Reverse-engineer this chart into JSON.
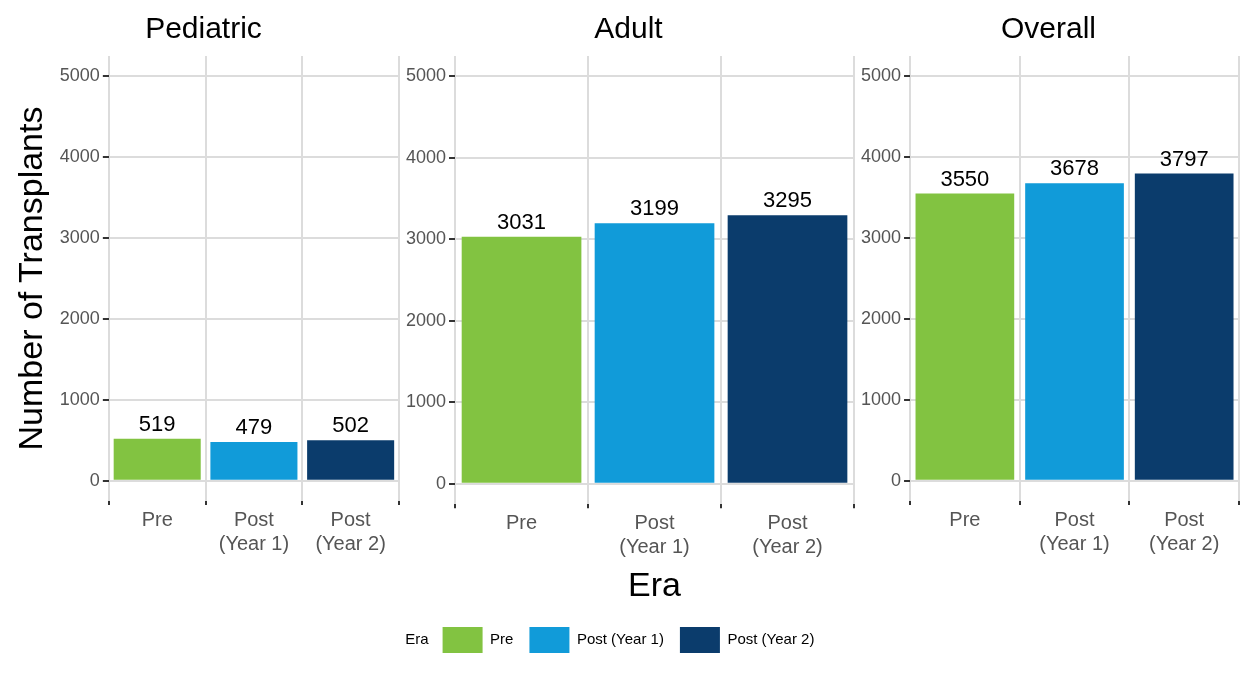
{
  "chart_data": [
    {
      "type": "bar",
      "title": "Pediatric",
      "ylabel": "Number of Transplants",
      "categories": [
        "Pre",
        "Post\n(Year 1)",
        "Post\n(Year 2)"
      ],
      "series": [
        {
          "color": "#82c341",
          "values": [
            519,
            null,
            null
          ]
        },
        {
          "color": "#119bd9",
          "values": [
            null,
            479,
            null
          ]
        },
        {
          "color": "#0b3c6c",
          "values": [
            null,
            null,
            502
          ]
        }
      ],
      "ylim": [
        -250,
        5250
      ],
      "yticks": [
        0,
        1000,
        2000,
        3000,
        4000,
        5000
      ],
      "grid": true,
      "data_labels": true
    },
    {
      "type": "bar",
      "title": "Adult",
      "xlabel": "Era",
      "categories": [
        "Pre",
        "Post\n(Year 1)",
        "Post\n(Year 2)"
      ],
      "series": [
        {
          "name": "Pre",
          "color": "#82c341",
          "values": [
            3031,
            null,
            null
          ]
        },
        {
          "name": "Post (Year 1)",
          "color": "#119bd9",
          "values": [
            null,
            3199,
            null
          ]
        },
        {
          "name": "Post (Year 2)",
          "color": "#0b3c6c",
          "values": [
            null,
            null,
            3295
          ]
        }
      ],
      "ylim": [
        -250,
        5250
      ],
      "yticks": [
        0,
        1000,
        2000,
        3000,
        4000,
        5000
      ],
      "grid": true,
      "data_labels": true,
      "legend": "bottom",
      "legend_title": "Era"
    },
    {
      "type": "bar",
      "title": "Overall",
      "categories": [
        "Pre",
        "Post\n(Year 1)",
        "Post\n(Year 2)"
      ],
      "series": [
        {
          "color": "#82c341",
          "values": [
            3550,
            null,
            null
          ]
        },
        {
          "color": "#119bd9",
          "values": [
            null,
            3678,
            null
          ]
        },
        {
          "color": "#0b3c6c",
          "values": [
            null,
            null,
            3797
          ]
        }
      ],
      "ylim": [
        -250,
        5250
      ],
      "yticks": [
        0,
        1000,
        2000,
        3000,
        4000,
        5000
      ],
      "grid": true,
      "data_labels": true
    }
  ]
}
